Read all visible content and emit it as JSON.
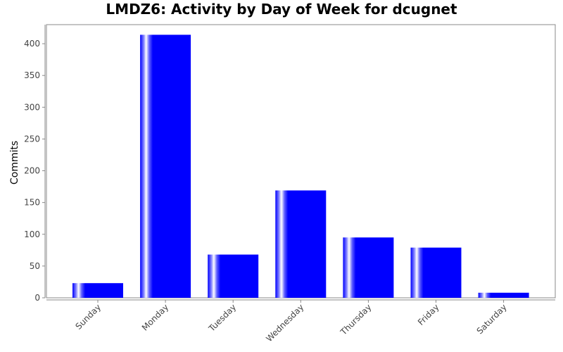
{
  "chart_data": {
    "type": "bar",
    "title": "LMDZ6: Activity by Day of Week for dcugnet",
    "xlabel": "",
    "ylabel": "Commits",
    "categories": [
      "Sunday",
      "Monday",
      "Tuesday",
      "Wednesday",
      "Thursday",
      "Friday",
      "Saturday"
    ],
    "values": [
      23,
      414,
      68,
      169,
      95,
      79,
      8
    ],
    "ylim": [
      0,
      430
    ],
    "yticks": [
      0,
      50,
      100,
      150,
      200,
      250,
      300,
      350,
      400
    ],
    "grid": false,
    "legend": "none",
    "bar_color": "#0000ff",
    "highlight_color": "#ffffff"
  }
}
